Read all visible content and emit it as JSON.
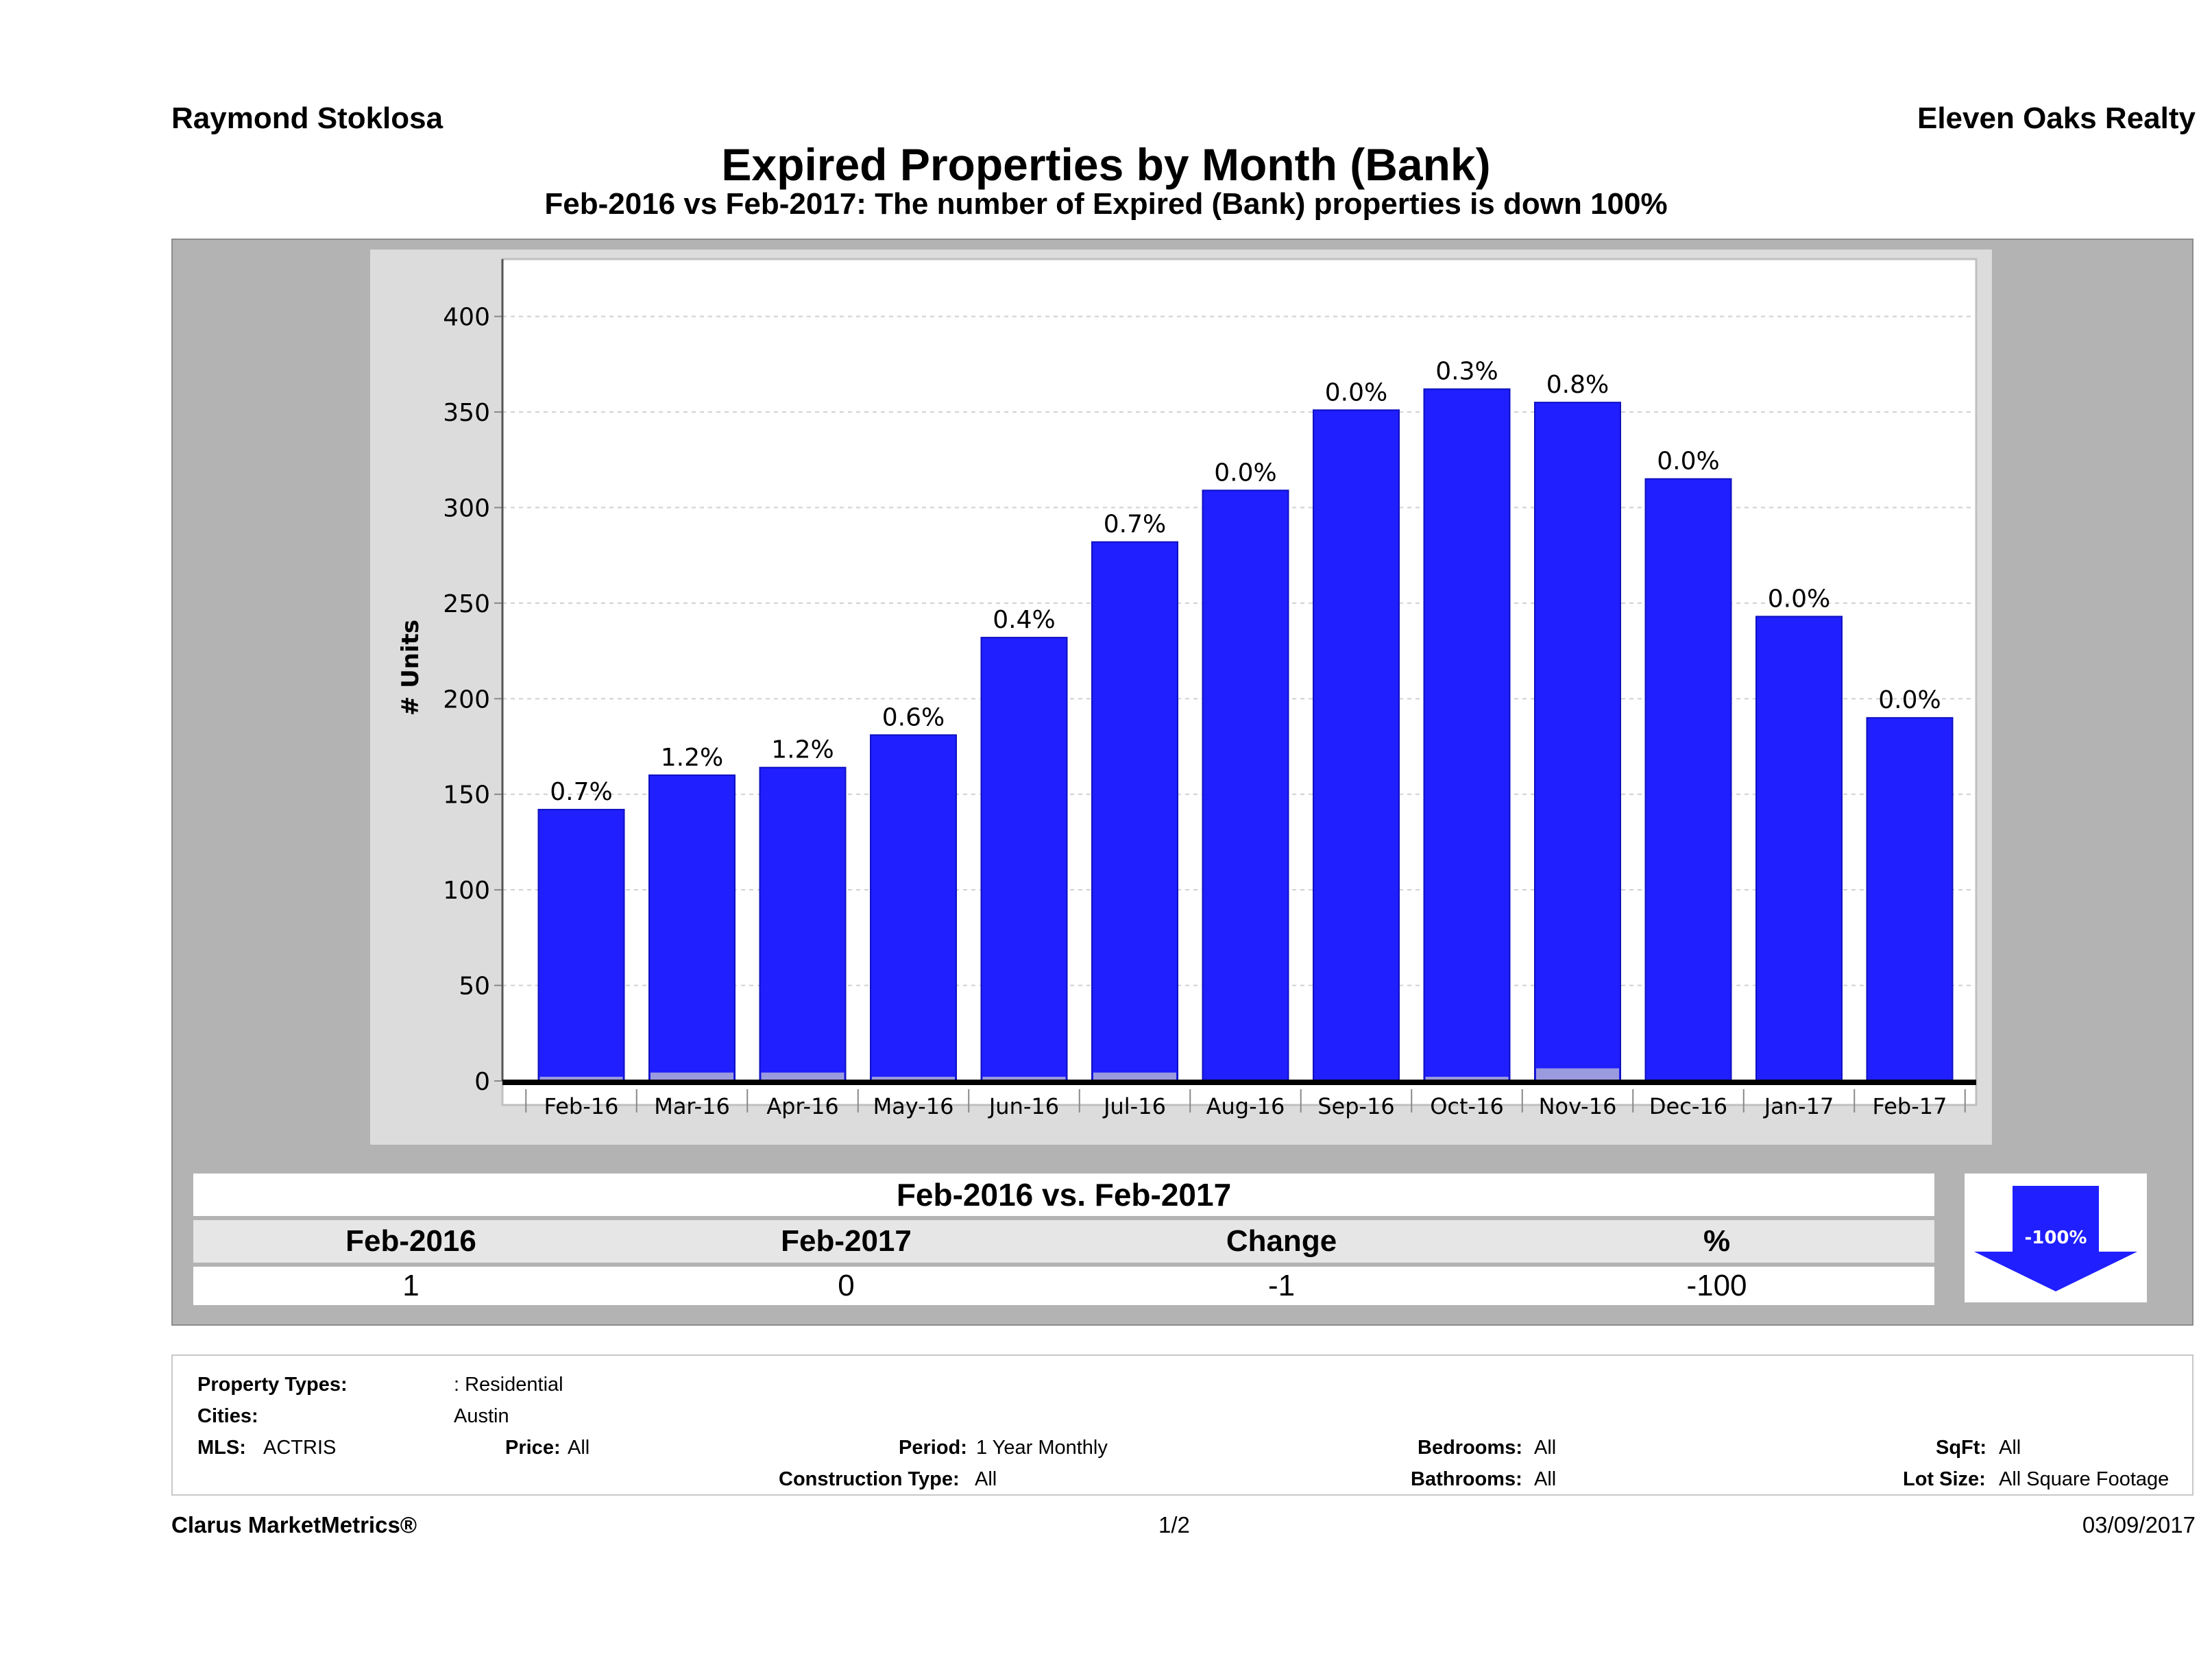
{
  "header": {
    "agent": "Raymond Stoklosa",
    "company": "Eleven Oaks Realty",
    "title": "Expired Properties by Month (Bank)",
    "subtitle": "Feb-2016 vs Feb-2017: The number of Expired (Bank)  properties is down 100%"
  },
  "chart_data": {
    "type": "bar",
    "ylabel": "# Units",
    "xlabel": "",
    "ylim": [
      0,
      430
    ],
    "yticks": [
      0,
      50,
      100,
      150,
      200,
      250,
      300,
      350,
      400
    ],
    "grid": true,
    "categories": [
      "Feb-16",
      "Mar-16",
      "Apr-16",
      "May-16",
      "Jun-16",
      "Jul-16",
      "Aug-16",
      "Sep-16",
      "Oct-16",
      "Nov-16",
      "Dec-16",
      "Jan-17",
      "Feb-17"
    ],
    "series": [
      {
        "values": [
          142,
          160,
          164,
          181,
          232,
          282,
          309,
          351,
          362,
          355,
          315,
          243,
          190
        ],
        "color": "#1f1fff"
      },
      {
        "values": [
          1,
          2,
          2,
          1,
          1,
          2,
          0,
          0,
          1,
          3,
          0,
          0,
          0
        ],
        "color": "#9a9adf"
      }
    ],
    "data_labels": [
      "0.7%",
      "1.2%",
      "1.2%",
      "0.6%",
      "0.4%",
      "0.7%",
      "0.0%",
      "0.0%",
      "0.3%",
      "0.8%",
      "0.0%",
      "0.0%",
      "0.0%"
    ]
  },
  "comparison": {
    "title": "Feb-2016 vs. Feb-2017",
    "headers": [
      "Feb-2016",
      "Feb-2017",
      "Change",
      "%"
    ],
    "values": [
      "1",
      "0",
      "-1",
      "-100"
    ],
    "indicator": "-100%",
    "indicator_color": "#1f1fff"
  },
  "criteria": {
    "property_types_label": "Property Types:",
    "property_types_value": ": Residential",
    "cities_label": "Cities:",
    "cities_value": "Austin",
    "mls_label": "MLS:",
    "mls_value": "ACTRIS",
    "price_label": "Price:",
    "price_value": "All",
    "period_label": "Period:",
    "period_value": "1 Year Monthly",
    "bedrooms_label": "Bedrooms:",
    "bedrooms_value": "All",
    "sqft_label": "SqFt:",
    "sqft_value": "All",
    "construction_label": "Construction Type:",
    "construction_value": "All",
    "bathrooms_label": "Bathrooms:",
    "bathrooms_value": "All",
    "lot_label": "Lot Size:",
    "lot_value": "All Square Footage"
  },
  "footer": {
    "brand": "Clarus MarketMetrics®",
    "page": "1/2",
    "date": "03/09/2017"
  }
}
